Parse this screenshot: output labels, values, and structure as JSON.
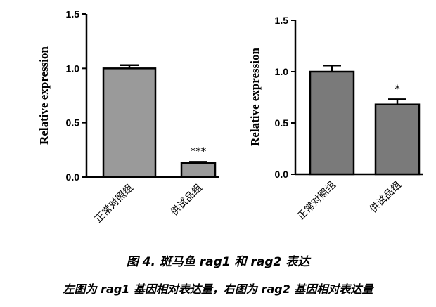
{
  "chart_data": [
    {
      "type": "bar",
      "categories": [
        "正常对照组",
        "供试品组"
      ],
      "values": [
        1.0,
        0.13
      ],
      "errors": [
        0.03,
        0.01
      ],
      "significance": [
        "",
        "***"
      ],
      "ylabel": "Relative expression",
      "xlabel": "",
      "title": "",
      "ylim": [
        0,
        1.5
      ],
      "yticks": [
        "0.0",
        "0.5",
        "1.0",
        "1.5"
      ],
      "bar_color": "#9a9a9a",
      "grid": false
    },
    {
      "type": "bar",
      "categories": [
        "正常对照组",
        "供试品组"
      ],
      "values": [
        1.0,
        0.68
      ],
      "errors": [
        0.06,
        0.05
      ],
      "significance": [
        "",
        "*"
      ],
      "ylabel": "Relative expression",
      "xlabel": "",
      "title": "",
      "ylim": [
        0,
        1.5
      ],
      "yticks": [
        "0.0",
        "0.5",
        "1.0",
        "1.5"
      ],
      "bar_color": "#7a7a7a",
      "grid": false
    }
  ],
  "caption": {
    "title": "图 4. 斑马鱼 rag1 和 rag2 表达",
    "subtitle": "左图为 rag1 基因相对表达量，右图为 rag2 基因相对表达量"
  }
}
